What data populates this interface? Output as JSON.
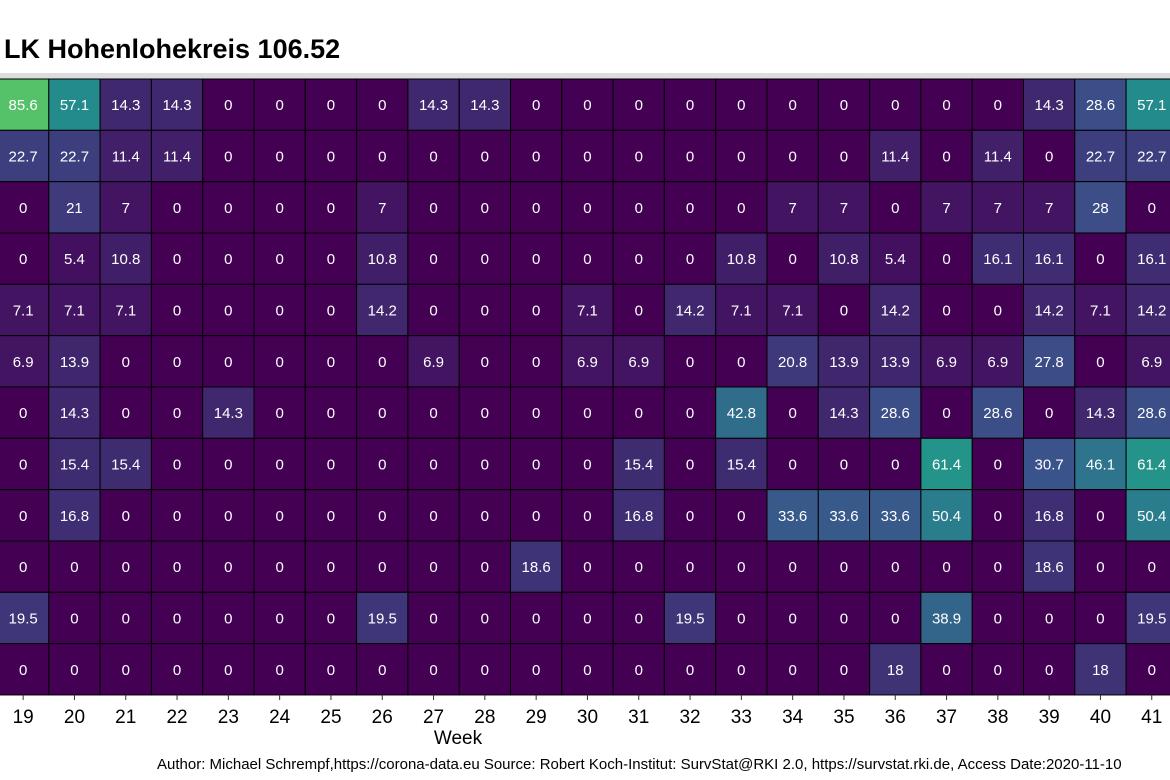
{
  "chart_data": {
    "type": "heatmap",
    "title": "LK Hohenlohekreis 106.52",
    "xlabel": "Week",
    "ylabel": "",
    "x": [
      19,
      20,
      21,
      22,
      23,
      24,
      25,
      26,
      27,
      28,
      29,
      30,
      31,
      32,
      33,
      34,
      35,
      36,
      37,
      38,
      39,
      40,
      41
    ],
    "rows": [
      [
        85.6,
        57.1,
        14.3,
        14.3,
        0,
        0,
        0,
        0,
        14.3,
        14.3,
        0,
        0,
        0,
        0,
        0,
        0,
        0,
        0,
        0,
        0,
        14.3,
        28.6,
        57.1
      ],
      [
        22.7,
        22.7,
        11.4,
        11.4,
        0,
        0,
        0,
        0,
        0,
        0,
        0,
        0,
        0,
        0,
        0,
        0,
        0,
        11.4,
        0,
        11.4,
        0,
        22.7,
        22.7
      ],
      [
        0,
        21,
        7,
        0,
        0,
        0,
        0,
        7,
        0,
        0,
        0,
        0,
        0,
        0,
        0,
        7,
        7,
        0,
        7,
        7,
        7,
        28,
        0
      ],
      [
        0,
        5.4,
        10.8,
        0,
        0,
        0,
        0,
        10.8,
        0,
        0,
        0,
        0,
        0,
        0,
        10.8,
        0,
        10.8,
        5.4,
        0,
        16.1,
        16.1,
        0,
        16.1
      ],
      [
        7.1,
        7.1,
        7.1,
        0,
        0,
        0,
        0,
        14.2,
        0,
        0,
        0,
        7.1,
        0,
        14.2,
        7.1,
        7.1,
        0,
        14.2,
        0,
        0,
        14.2,
        7.1,
        14.2
      ],
      [
        6.9,
        13.9,
        0,
        0,
        0,
        0,
        0,
        0,
        6.9,
        0,
        0,
        6.9,
        6.9,
        0,
        0,
        20.8,
        13.9,
        13.9,
        6.9,
        6.9,
        27.8,
        0,
        6.9
      ],
      [
        0,
        14.3,
        0,
        0,
        14.3,
        0,
        0,
        0,
        0,
        0,
        0,
        0,
        0,
        0,
        42.8,
        0,
        14.3,
        28.6,
        0,
        28.6,
        0,
        14.3,
        28.6
      ],
      [
        0,
        15.4,
        15.4,
        0,
        0,
        0,
        0,
        0,
        0,
        0,
        0,
        0,
        15.4,
        0,
        15.4,
        0,
        0,
        0,
        61.4,
        0,
        30.7,
        46.1,
        61.4
      ],
      [
        0,
        16.8,
        0,
        0,
        0,
        0,
        0,
        0,
        0,
        0,
        0,
        0,
        16.8,
        0,
        0,
        33.6,
        33.6,
        33.6,
        50.4,
        0,
        16.8,
        0,
        50.4
      ],
      [
        0,
        0,
        0,
        0,
        0,
        0,
        0,
        0,
        0,
        0,
        18.6,
        0,
        0,
        0,
        0,
        0,
        0,
        0,
        0,
        0,
        18.6,
        0,
        0
      ],
      [
        19.5,
        0,
        0,
        0,
        0,
        0,
        0,
        19.5,
        0,
        0,
        0,
        0,
        0,
        19.5,
        0,
        0,
        0,
        0,
        38.9,
        0,
        0,
        0,
        19.5
      ],
      [
        0,
        0,
        0,
        0,
        0,
        0,
        0,
        0,
        0,
        0,
        0,
        0,
        0,
        0,
        0,
        0,
        0,
        18,
        0,
        0,
        0,
        18,
        0
      ]
    ],
    "color_scale": "viridis",
    "grid": false,
    "legend": "none"
  },
  "caption": "Author: Michael Schrempf,https://corona-data.eu Source: Robert Koch-Institut: SurvStat@RKI 2.0, https://survstat.rki.de, Access Date:2020-11-10"
}
